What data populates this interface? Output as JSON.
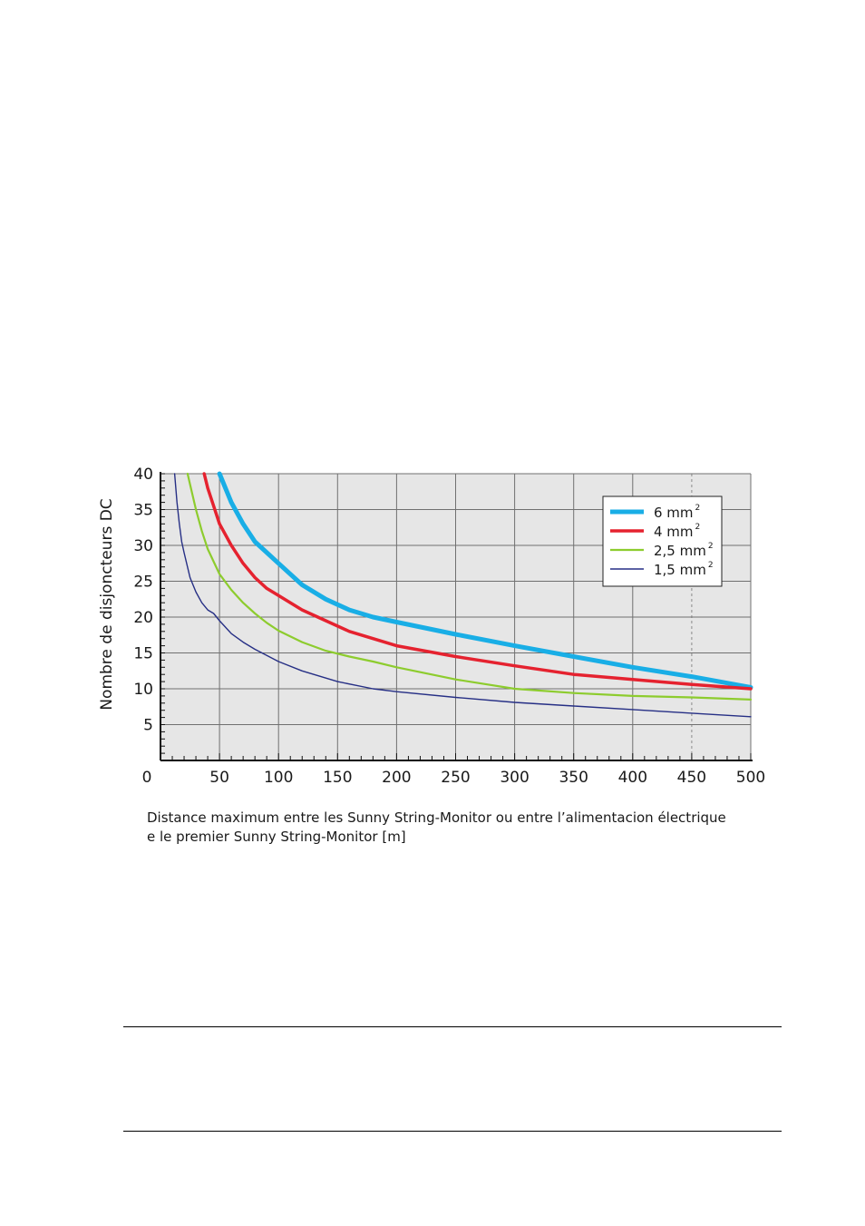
{
  "chart_data": {
    "type": "line",
    "xlabel_lines": [
      "Distance maximum entre les Sunny String-Monitor ou entre l’alimentacion électrique",
      "e le premier Sunny String-Monitor [m]"
    ],
    "ylabel": "Nombre de disjoncteurs DC",
    "xlim": [
      0,
      500
    ],
    "ylim": [
      0,
      40
    ],
    "x_ticks": [
      "0",
      "50",
      "100",
      "150",
      "200",
      "250",
      "300",
      "350",
      "400",
      "450",
      "500"
    ],
    "y_ticks": [
      "5",
      "10",
      "15",
      "20",
      "25",
      "30",
      "35",
      "40"
    ],
    "grid": true,
    "legend_position": "top-right",
    "series": [
      {
        "name": "6 mm",
        "sup": "2",
        "color": "#19aee6",
        "x": [
          50,
          60,
          70,
          80,
          90,
          100,
          120,
          140,
          160,
          180,
          200,
          250,
          300,
          350,
          400,
          450,
          500
        ],
        "y": [
          40,
          36,
          33,
          30.5,
          29,
          27.5,
          24.5,
          22.5,
          21,
          20,
          19.3,
          17.6,
          16,
          14.5,
          13,
          11.7,
          10.2
        ]
      },
      {
        "name": "4 mm",
        "sup": "2",
        "color": "#e5222f",
        "x": [
          37,
          40,
          45,
          50,
          60,
          70,
          80,
          90,
          100,
          120,
          140,
          160,
          180,
          200,
          250,
          300,
          350,
          400,
          450,
          500
        ],
        "y": [
          40,
          38,
          35.5,
          33,
          30,
          27.5,
          25.5,
          24,
          23,
          21,
          19.5,
          18,
          17,
          16,
          14.5,
          13.2,
          12,
          11.3,
          10.6,
          10
        ]
      },
      {
        "name": "2,5 mm",
        "sup": "2",
        "color": "#8dcc2e",
        "x": [
          23,
          25,
          30,
          35,
          40,
          50,
          60,
          70,
          80,
          90,
          100,
          120,
          140,
          160,
          180,
          200,
          250,
          300,
          350,
          400,
          450,
          500
        ],
        "y": [
          40,
          38.5,
          35,
          32,
          29.5,
          26,
          23.8,
          22,
          20.5,
          19.2,
          18.1,
          16.5,
          15.3,
          14.5,
          13.8,
          13,
          11.3,
          10,
          9.4,
          9,
          8.8,
          8.5
        ]
      },
      {
        "name": "1,5 mm",
        "sup": "2",
        "color": "#262f85",
        "x": [
          12,
          14,
          16,
          18,
          20,
          25,
          30,
          35,
          40,
          45,
          50,
          60,
          70,
          80,
          100,
          120,
          150,
          180,
          200,
          250,
          300,
          350,
          400,
          450,
          500
        ],
        "y": [
          40,
          36,
          33,
          30.5,
          29,
          25.5,
          23.5,
          22,
          21,
          20.5,
          19.5,
          17.7,
          16.5,
          15.5,
          13.8,
          12.5,
          11,
          10,
          9.6,
          8.8,
          8.1,
          7.6,
          7.1,
          6.6,
          6.1
        ]
      }
    ]
  }
}
